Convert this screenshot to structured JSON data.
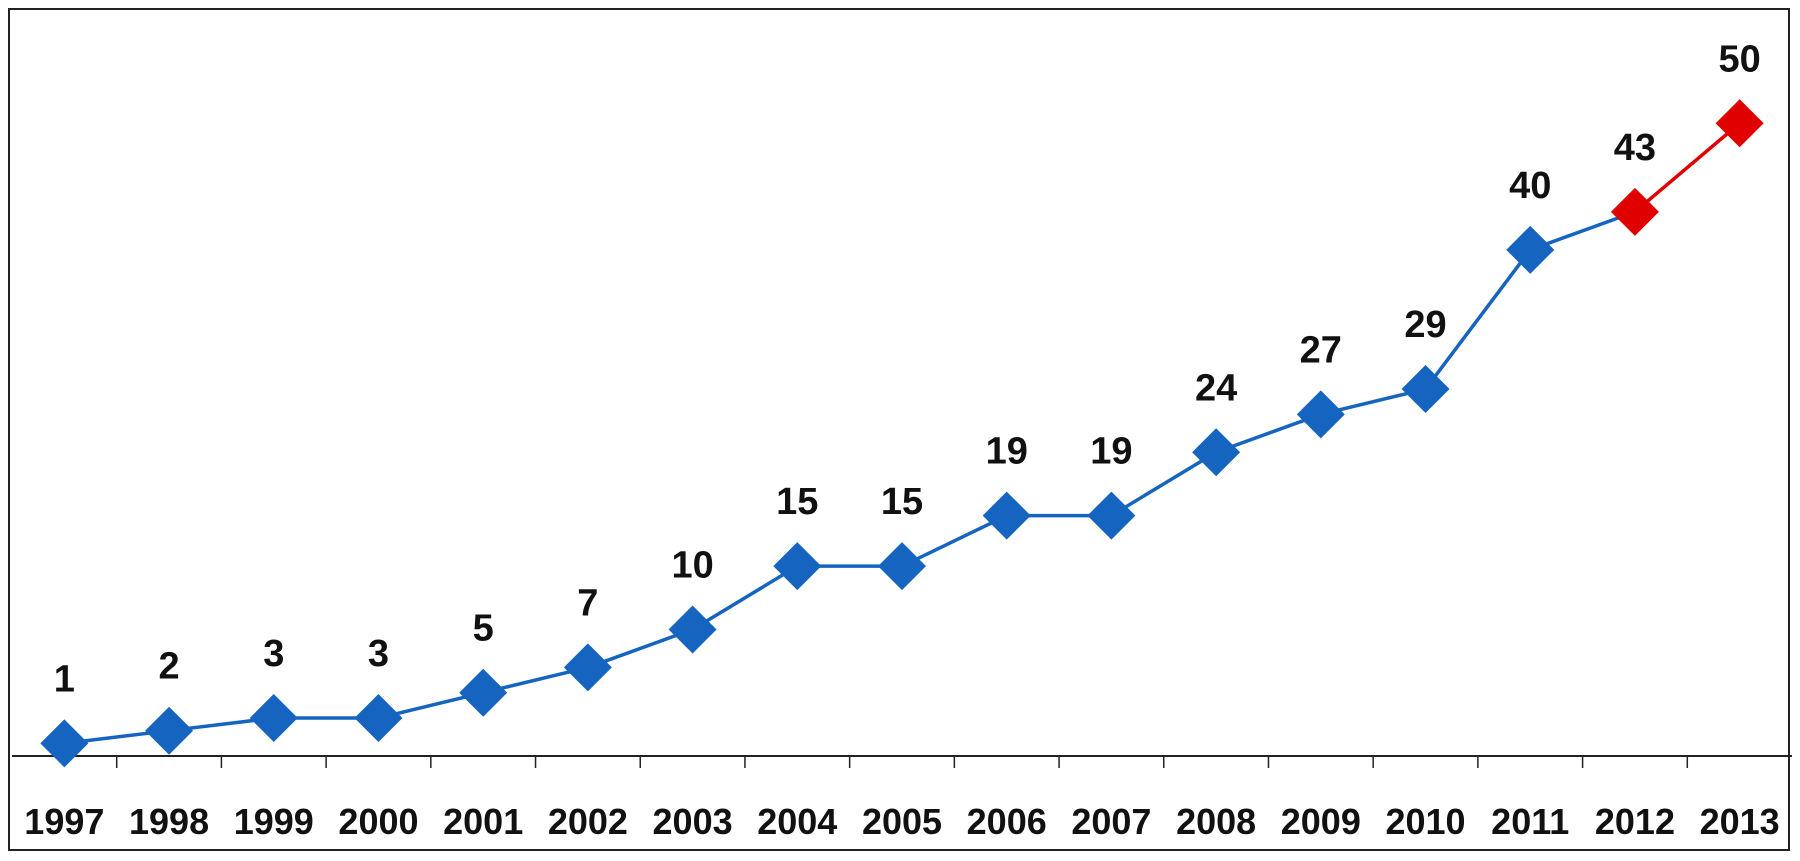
{
  "chart_data": {
    "type": "line",
    "title": "",
    "xlabel": "",
    "ylabel": "",
    "categories": [
      "1997",
      "1998",
      "1999",
      "2000",
      "2001",
      "2002",
      "2003",
      "2004",
      "2005",
      "2006",
      "2007",
      "2008",
      "2009",
      "2010",
      "2011",
      "2012",
      "2013"
    ],
    "values": [
      1,
      2,
      3,
      3,
      5,
      7,
      10,
      15,
      15,
      19,
      19,
      24,
      27,
      29,
      40,
      43,
      50
    ],
    "ylim": [
      0,
      55
    ],
    "grid": false,
    "colors": {
      "primary": "#1565C0",
      "highlight": "#E00000",
      "axis": "#222222"
    },
    "highlight_from_category": "2012",
    "marker": "diamond"
  }
}
